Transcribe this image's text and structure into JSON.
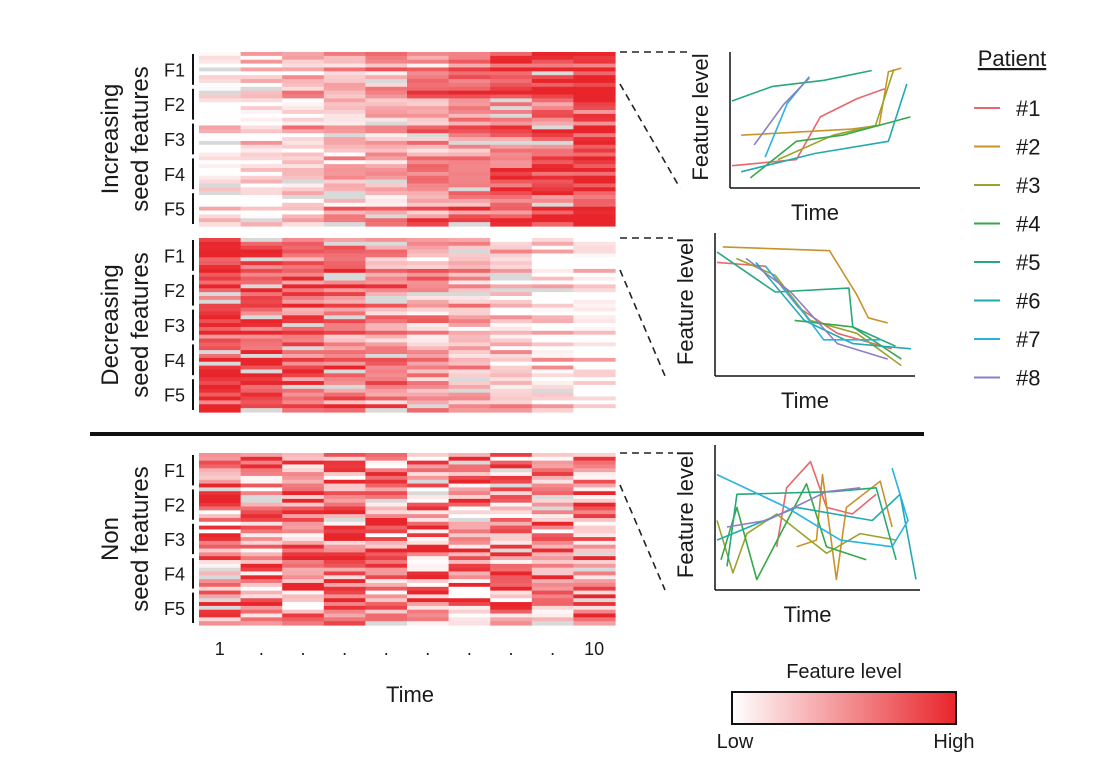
{
  "chart_data": {
    "type": "heatmap",
    "groups": [
      {
        "name": "Increasing",
        "label_lines": [
          "Increasing",
          "seed features"
        ],
        "trend": "increasing"
      },
      {
        "name": "Decreasing",
        "label_lines": [
          "Decreasing",
          "seed features"
        ],
        "trend": "decreasing"
      },
      {
        "name": "Non",
        "label_lines": [
          "Non",
          "seed features"
        ],
        "trend": "random"
      }
    ],
    "features": [
      "F1",
      "F2",
      "F3",
      "F4",
      "F5"
    ],
    "time_points": 10,
    "x_ticks": [
      "1",
      ".",
      ".",
      ".",
      ".",
      ".",
      ".",
      ".",
      ".",
      "10"
    ],
    "xlabel": "Time",
    "colorbar": {
      "title": "Feature level",
      "low_label": "Low",
      "high_label": "High",
      "low_color": "#ffffff",
      "high_color": "#e8252b",
      "missing_color": "#d9d9d9"
    },
    "line_plots": {
      "xlabel": "Time",
      "ylabel": "Feature level",
      "legend_title": "Patient",
      "patients": [
        {
          "name": "#1",
          "color": "#e8676b"
        },
        {
          "name": "#2",
          "color": "#c9932a"
        },
        {
          "name": "#3",
          "color": "#9aa42c"
        },
        {
          "name": "#4",
          "color": "#35a94a"
        },
        {
          "name": "#5",
          "color": "#26a87a"
        },
        {
          "name": "#6",
          "color": "#22aab0"
        },
        {
          "name": "#7",
          "color": "#2ab2e2"
        },
        {
          "name": "#8",
          "color": "#8a7fc0"
        }
      ],
      "increasing": [
        [
          [
            0.0,
            0.15
          ],
          [
            0.35,
            0.2
          ],
          [
            0.48,
            0.55
          ],
          [
            0.68,
            0.7
          ],
          [
            0.83,
            0.78
          ]
        ],
        [
          [
            0.05,
            0.4
          ],
          [
            0.65,
            0.45
          ],
          [
            0.8,
            0.48
          ],
          [
            0.85,
            0.92
          ],
          [
            0.92,
            0.95
          ]
        ],
        [
          [
            0.25,
            0.2
          ],
          [
            0.55,
            0.4
          ],
          [
            0.78,
            0.48
          ],
          [
            0.88,
            0.94
          ]
        ],
        [
          [
            0.1,
            0.05
          ],
          [
            0.35,
            0.35
          ],
          [
            0.6,
            0.4
          ],
          [
            0.97,
            0.55
          ]
        ],
        [
          [
            0.0,
            0.68
          ],
          [
            0.22,
            0.8
          ],
          [
            0.5,
            0.85
          ],
          [
            0.76,
            0.93
          ]
        ],
        [
          [
            0.05,
            0.1
          ],
          [
            0.45,
            0.25
          ],
          [
            0.85,
            0.35
          ],
          [
            0.95,
            0.82
          ]
        ],
        [
          [
            0.18,
            0.22
          ],
          [
            0.3,
            0.66
          ],
          [
            0.42,
            0.88
          ]
        ],
        [
          [
            0.12,
            0.32
          ],
          [
            0.28,
            0.65
          ],
          [
            0.42,
            0.87
          ]
        ]
      ],
      "decreasing": [
        [
          [
            0.0,
            0.85
          ],
          [
            0.25,
            0.82
          ],
          [
            0.42,
            0.5
          ],
          [
            0.62,
            0.3
          ],
          [
            0.9,
            0.18
          ]
        ],
        [
          [
            0.03,
            0.97
          ],
          [
            0.58,
            0.94
          ],
          [
            0.72,
            0.6
          ],
          [
            0.78,
            0.42
          ],
          [
            0.88,
            0.38
          ]
        ],
        [
          [
            0.1,
            0.88
          ],
          [
            0.3,
            0.75
          ],
          [
            0.48,
            0.4
          ],
          [
            0.72,
            0.3
          ],
          [
            0.95,
            0.05
          ]
        ],
        [
          [
            0.4,
            0.4
          ],
          [
            0.7,
            0.35
          ],
          [
            0.95,
            0.1
          ]
        ],
        [
          [
            0.0,
            0.93
          ],
          [
            0.3,
            0.62
          ],
          [
            0.68,
            0.65
          ],
          [
            0.7,
            0.35
          ],
          [
            0.92,
            0.2
          ]
        ],
        [
          [
            0.2,
            0.85
          ],
          [
            0.45,
            0.4
          ],
          [
            0.7,
            0.22
          ],
          [
            1.0,
            0.18
          ]
        ],
        [
          [
            0.25,
            0.82
          ],
          [
            0.45,
            0.45
          ],
          [
            0.55,
            0.25
          ],
          [
            0.85,
            0.25
          ]
        ],
        [
          [
            0.15,
            0.88
          ],
          [
            0.38,
            0.62
          ],
          [
            0.62,
            0.22
          ],
          [
            0.88,
            0.1
          ]
        ]
      ],
      "non": [
        [
          [
            0.3,
            0.3
          ],
          [
            0.35,
            0.75
          ],
          [
            0.47,
            0.95
          ],
          [
            0.55,
            0.6
          ],
          [
            0.68,
            0.55
          ],
          [
            0.8,
            0.7
          ]
        ],
        [
          [
            0.4,
            0.3
          ],
          [
            0.5,
            0.35
          ],
          [
            0.53,
            0.85
          ],
          [
            0.6,
            0.05
          ],
          [
            0.65,
            0.6
          ],
          [
            0.82,
            0.8
          ],
          [
            0.88,
            0.45
          ]
        ],
        [
          [
            0.0,
            0.5
          ],
          [
            0.08,
            0.1
          ],
          [
            0.15,
            0.4
          ],
          [
            0.3,
            0.55
          ],
          [
            0.55,
            0.25
          ],
          [
            0.72,
            0.4
          ],
          [
            0.9,
            0.35
          ]
        ],
        [
          [
            0.02,
            0.2
          ],
          [
            0.1,
            0.6
          ],
          [
            0.2,
            0.05
          ],
          [
            0.45,
            0.78
          ],
          [
            0.55,
            0.3
          ],
          [
            0.75,
            0.2
          ]
        ],
        [
          [
            0.05,
            0.15
          ],
          [
            0.1,
            0.7
          ],
          [
            0.58,
            0.72
          ],
          [
            0.8,
            0.75
          ],
          [
            0.9,
            0.2
          ]
        ],
        [
          [
            0.0,
            0.35
          ],
          [
            0.4,
            0.6
          ],
          [
            0.78,
            0.5
          ],
          [
            0.92,
            0.7
          ],
          [
            1.0,
            0.05
          ]
        ],
        [
          [
            0.0,
            0.85
          ],
          [
            0.35,
            0.6
          ],
          [
            0.62,
            0.35
          ],
          [
            0.88,
            0.3
          ],
          [
            0.96,
            0.5
          ],
          [
            0.88,
            0.9
          ]
        ],
        [
          [
            0.05,
            0.45
          ],
          [
            0.25,
            0.5
          ],
          [
            0.55,
            0.72
          ],
          [
            0.72,
            0.75
          ]
        ]
      ]
    }
  }
}
